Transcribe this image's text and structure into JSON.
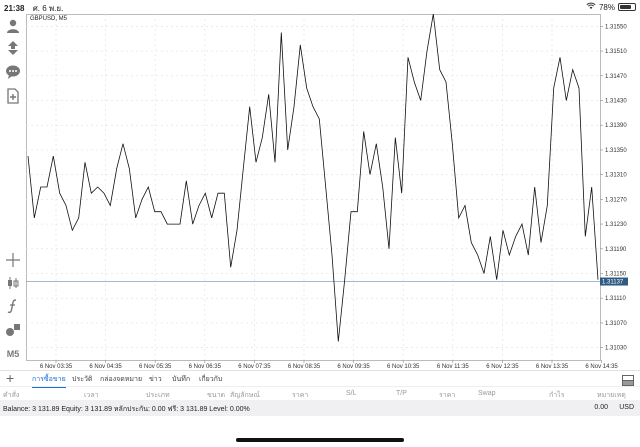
{
  "status_bar": {
    "time": "21:38",
    "date": "ศ. 6 พ.ย.",
    "battery": "78%",
    "battery_level": 0.78
  },
  "symbol_title": "GBPUSD, M5",
  "left_toolbar": {
    "timeframe_label": "M5"
  },
  "chart_data": {
    "type": "line",
    "title": "GBPUSD, M5",
    "xlabel": "",
    "ylabel": "",
    "ylim": [
      1.3101,
      1.3157
    ],
    "x_ticks": [
      "6 Nov 03:35",
      "6 Nov 04:35",
      "6 Nov 05:35",
      "6 Nov 06:35",
      "6 Nov 07:35",
      "6 Nov 08:35",
      "6 Nov 09:35",
      "6 Nov 10:35",
      "6 Nov 11:35",
      "6 Nov 12:35",
      "6 Nov 13:35",
      "6 Nov 14:35"
    ],
    "y_ticks": [
      "1.31550",
      "1.31510",
      "1.31470",
      "1.31430",
      "1.31390",
      "1.31350",
      "1.31310",
      "1.31270",
      "1.31230",
      "1.31190",
      "1.31150",
      "1.31110",
      "1.31070",
      "1.31030"
    ],
    "y_tick_values": [
      1.3155,
      1.3151,
      1.3147,
      1.3143,
      1.3139,
      1.3135,
      1.3131,
      1.3127,
      1.3123,
      1.3119,
      1.3115,
      1.3111,
      1.3107,
      1.3103
    ],
    "current_price": "1.31137",
    "current_price_value": 1.31137,
    "grid": true,
    "series": [
      {
        "values": [
          1.3134,
          1.3124,
          1.3129,
          1.3129,
          1.3134,
          1.3128,
          1.3126,
          1.3122,
          1.3124,
          1.3133,
          1.3128,
          1.3129,
          1.3128,
          1.3126,
          1.3132,
          1.3136,
          1.3132,
          1.3124,
          1.3127,
          1.3129,
          1.3125,
          1.3125,
          1.3123,
          1.3123,
          1.3123,
          1.313,
          1.3123,
          1.3126,
          1.3128,
          1.3124,
          1.3128,
          1.3128,
          1.3116,
          1.3122,
          1.3132,
          1.3142,
          1.3133,
          1.3137,
          1.3144,
          1.3133,
          1.3154,
          1.3135,
          1.3142,
          1.3152,
          1.3145,
          1.3142,
          1.314,
          1.3129,
          1.3118,
          1.3104,
          1.3114,
          1.3125,
          1.3125,
          1.3138,
          1.3131,
          1.3136,
          1.3129,
          1.3119,
          1.3137,
          1.3128,
          1.315,
          1.3146,
          1.3143,
          1.3151,
          1.3157,
          1.3148,
          1.3146,
          1.3136,
          1.3124,
          1.3126,
          1.312,
          1.3118,
          1.3115,
          1.3121,
          1.3114,
          1.3122,
          1.3118,
          1.3121,
          1.3123,
          1.3118,
          1.3129,
          1.312,
          1.3126,
          1.3145,
          1.315,
          1.3143,
          1.3148,
          1.3145,
          1.3121,
          1.3129,
          1.3114
        ]
      }
    ]
  },
  "trade_tabs": [
    {
      "label": "การซื้อขาย",
      "active": true
    },
    {
      "label": "ประวัติ",
      "active": false
    },
    {
      "label": "กล่องจดหมาย",
      "active": false
    },
    {
      "label": "ข่าว",
      "active": false
    },
    {
      "label": "บันทึก",
      "active": false
    },
    {
      "label": "เกี่ยวกับ",
      "active": false
    }
  ],
  "columns": [
    "คำสั่ง",
    "เวลา",
    "ประเภท",
    "ขนาด",
    "สัญลักษณ์",
    "ราคา",
    "S/L",
    "T/P",
    "ราคา",
    "Swap",
    "กำไร",
    "หมายเหตุ"
  ],
  "balance_line": "Balance: 3 131.89 Equity: 3 131.89 หลักประกัน: 0.00 ฟรี: 3 131.89 Level: 0.00%",
  "total_profit": "0.00",
  "currency": "USD",
  "colors": {
    "accent": "#1e6fd9",
    "price_line": "#8aa0b8",
    "price_label_bg": "#2f5a84",
    "chart_line": "#111111",
    "grid": "#e3e3e3"
  },
  "icons": [
    "person-icon",
    "arrows-icon",
    "chat-icon",
    "new-order-icon",
    "crosshair-icon",
    "candles-icon",
    "function-icon",
    "objects-icon",
    "plus-icon",
    "split-pane-icon",
    "wifi-icon",
    "battery-icon"
  ]
}
